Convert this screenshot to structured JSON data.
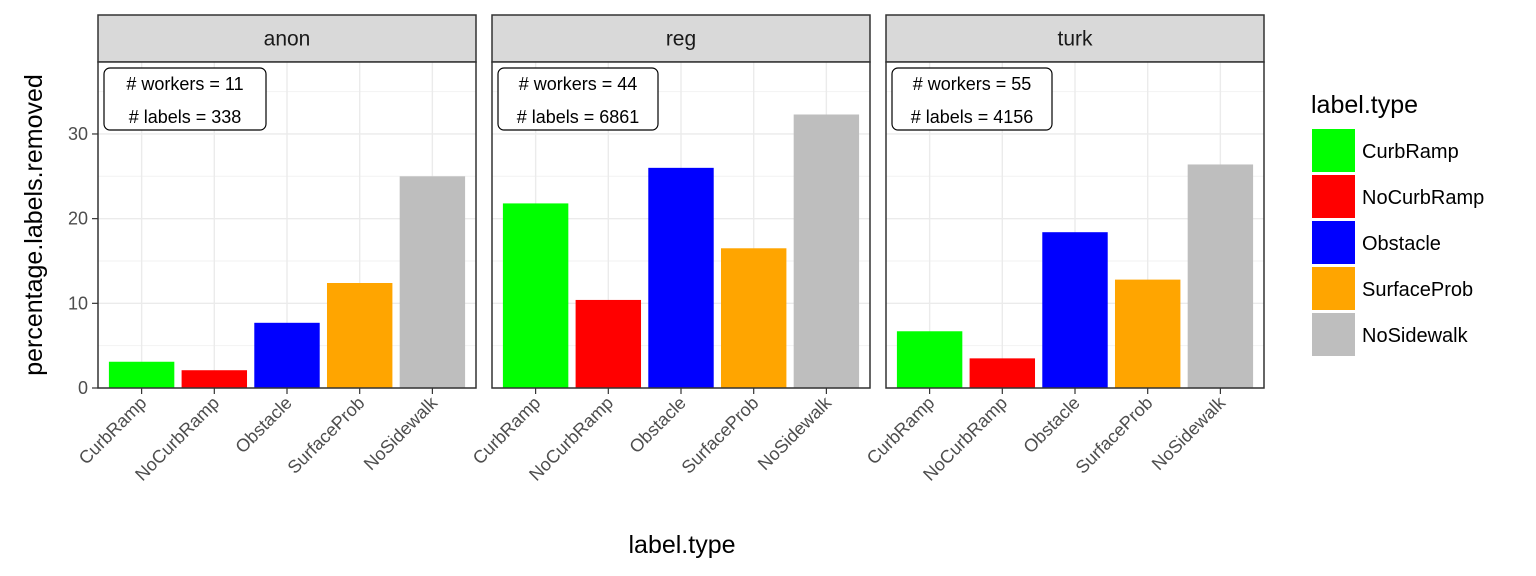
{
  "chart_data": {
    "type": "bar",
    "xlabel": "label.type",
    "ylabel": "percentage.labels.removed",
    "ylim": [
      0,
      38.5
    ],
    "yticks": [
      0,
      10,
      20,
      30
    ],
    "grid": true,
    "legend": {
      "title": "label.type",
      "placement": "right",
      "entries": [
        {
          "label": "CurbRamp",
          "color": "#00ff00"
        },
        {
          "label": "NoCurbRamp",
          "color": "#ff0000"
        },
        {
          "label": "Obstacle",
          "color": "#0000ff"
        },
        {
          "label": "SurfaceProb",
          "color": "#ffa500"
        },
        {
          "label": "NoSidewalk",
          "color": "#bebebe"
        }
      ]
    },
    "categories": [
      "CurbRamp",
      "NoCurbRamp",
      "Obstacle",
      "SurfaceProb",
      "NoSidewalk"
    ],
    "panels": [
      {
        "name": "anon",
        "values": [
          3.1,
          2.1,
          7.7,
          12.4,
          25.0
        ],
        "annotation": [
          "# workers = 11",
          "# labels = 338"
        ]
      },
      {
        "name": "reg",
        "values": [
          21.8,
          10.4,
          26.0,
          16.5,
          32.3
        ],
        "annotation": [
          "# workers = 44",
          "# labels = 6861"
        ]
      },
      {
        "name": "turk",
        "values": [
          6.7,
          3.5,
          18.4,
          12.8,
          26.4
        ],
        "annotation": [
          "# workers = 55",
          "# labels = 4156"
        ]
      }
    ]
  }
}
